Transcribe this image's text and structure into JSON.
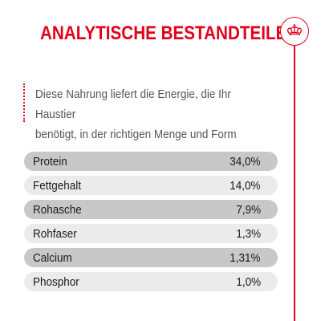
{
  "title": "ANALYTISCHE BESTANDTEILE",
  "badge_icon": "crown-icon",
  "accent_color": "#e2001a",
  "intro_lines": [
    "Diese Nahrung liefert die Energie, die Ihr Haustier",
    "benötigt, in der richtigen Menge und Form"
  ],
  "nutrients": [
    {
      "name": "Protein",
      "value": "34,0%"
    },
    {
      "name": "Fettgehalt",
      "value": "14,0%"
    },
    {
      "name": "Rohasche",
      "value": "7,9%"
    },
    {
      "name": "Rohfaser",
      "value": "1,3%"
    },
    {
      "name": "Calcium",
      "value": "1,31%"
    },
    {
      "name": "Phosphor",
      "value": "1,0%"
    }
  ]
}
